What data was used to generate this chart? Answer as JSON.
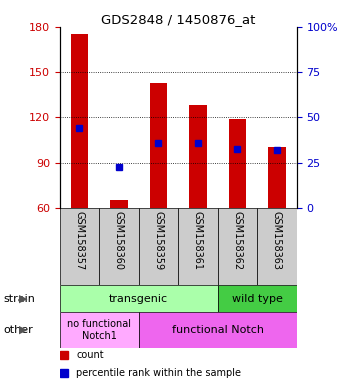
{
  "title": "GDS2848 / 1450876_at",
  "samples": [
    "GSM158357",
    "GSM158360",
    "GSM158359",
    "GSM158361",
    "GSM158362",
    "GSM158363"
  ],
  "bar_top": [
    175,
    65,
    143,
    128,
    119,
    100
  ],
  "bar_bottom": 60,
  "blue_dot_y": [
    113,
    87,
    103,
    103,
    99,
    98
  ],
  "ylim": [
    60,
    180
  ],
  "y_ticks_left": [
    60,
    90,
    120,
    150,
    180
  ],
  "y_ticks_right": [
    0,
    25,
    50,
    75,
    100
  ],
  "y_right_labels": [
    "0",
    "25",
    "50",
    "75",
    "100%"
  ],
  "bar_color": "#cc0000",
  "dot_color": "#0000cc",
  "axis_left_color": "#cc0000",
  "axis_right_color": "#0000cc",
  "strain_transgenic_label": "transgenic",
  "strain_wildtype_label": "wild type",
  "other_nofunc_label": "no functional\nNotch1",
  "other_func_label": "functional Notch",
  "strain_label": "strain",
  "other_label": "other",
  "legend_count_label": "count",
  "legend_pct_label": "percentile rank within the sample",
  "tick_bg_color": "#cccccc",
  "transgenic_color": "#aaffaa",
  "wildtype_color": "#44cc44",
  "nofunc_color": "#ffaaff",
  "func_color": "#ee66ee"
}
